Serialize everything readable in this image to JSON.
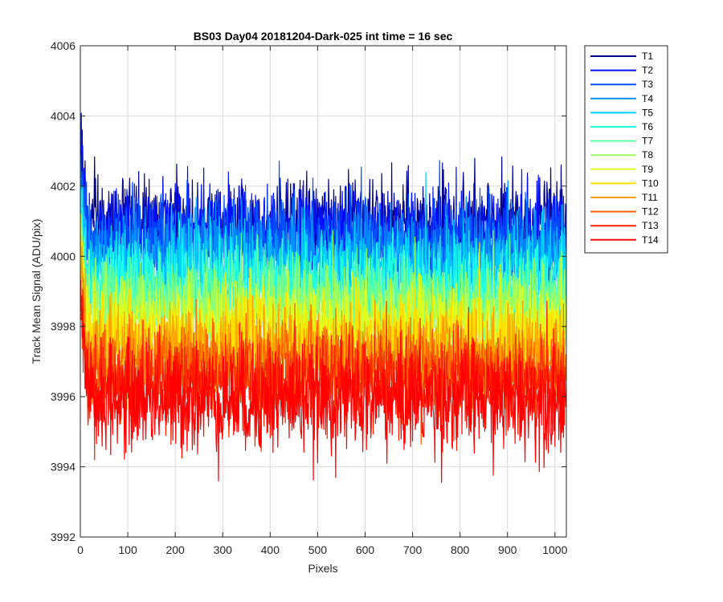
{
  "chart_data": {
    "type": "line",
    "title": "BS03 Day04 20181204-Dark-025 int time = 16 sec",
    "xlabel": "Pixels",
    "ylabel": "Track Mean Signal (ADU/pix)",
    "xlim": [
      0,
      1024
    ],
    "ylim": [
      3992,
      4006
    ],
    "x_ticks": [
      0,
      100,
      200,
      300,
      400,
      500,
      600,
      700,
      800,
      900,
      1000
    ],
    "x_tick_labels": [
      "0",
      "100",
      "200",
      "300",
      "400",
      "500",
      "600",
      "700",
      "800",
      "900",
      "1000"
    ],
    "y_ticks": [
      3992,
      3994,
      3996,
      3998,
      4000,
      4002,
      4004,
      4006
    ],
    "y_tick_labels": [
      "3992",
      "3994",
      "3996",
      "3998",
      "4000",
      "4002",
      "4004",
      "4006"
    ],
    "grid": true,
    "legend_position": "outside-top-right",
    "x_range": {
      "start": 1,
      "end": 1024,
      "step": 1
    },
    "series": [
      {
        "name": "T1",
        "color": "#00008f",
        "mean": 4000.9,
        "noise_sd": 0.65
      },
      {
        "name": "T2",
        "color": "#0010ff",
        "mean": 4000.7,
        "noise_sd": 0.65
      },
      {
        "name": "T3",
        "color": "#0050ff",
        "mean": 4000.4,
        "noise_sd": 0.65
      },
      {
        "name": "T4",
        "color": "#0090ff",
        "mean": 4000.0,
        "noise_sd": 0.65
      },
      {
        "name": "T5",
        "color": "#00d0ff",
        "mean": 3999.6,
        "noise_sd": 0.65
      },
      {
        "name": "T6",
        "color": "#20ffdf",
        "mean": 3999.2,
        "noise_sd": 0.65
      },
      {
        "name": "T7",
        "color": "#60ff9f",
        "mean": 3998.8,
        "noise_sd": 0.65
      },
      {
        "name": "T8",
        "color": "#9fff60",
        "mean": 3998.4,
        "noise_sd": 0.65
      },
      {
        "name": "T9",
        "color": "#dfff20",
        "mean": 3998.0,
        "noise_sd": 0.65
      },
      {
        "name": "T10",
        "color": "#ffdf00",
        "mean": 3997.6,
        "noise_sd": 0.65
      },
      {
        "name": "T11",
        "color": "#ff9f00",
        "mean": 3997.2,
        "noise_sd": 0.65
      },
      {
        "name": "T12",
        "color": "#ff6000",
        "mean": 3996.8,
        "noise_sd": 0.65
      },
      {
        "name": "T13",
        "color": "#ff2000",
        "mean": 3996.4,
        "noise_sd": 0.65
      },
      {
        "name": "T14",
        "color": "#ff0000",
        "mean": 3995.9,
        "noise_sd": 0.75
      }
    ]
  }
}
